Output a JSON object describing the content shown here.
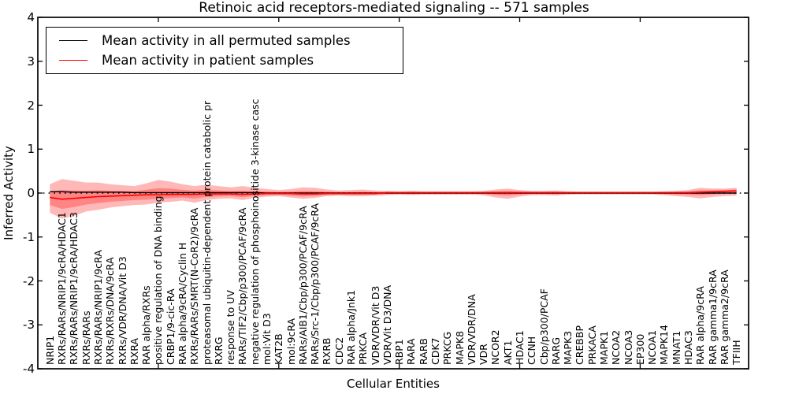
{
  "title": "Retinoic acid receptors-mediated signaling -- 571 samples",
  "legend": {
    "items": [
      {
        "name": "permuted",
        "label": "Mean activity in all permuted samples",
        "color": "#000000"
      },
      {
        "name": "patient",
        "label": "Mean activity in patient samples",
        "color": "#ff0000"
      }
    ],
    "position": "upper left"
  },
  "chart_data": {
    "type": "line",
    "title": "Retinoic acid receptors-mediated signaling -- 571 samples",
    "xlabel": "Cellular Entities",
    "ylabel": "Inferred Activity",
    "ylim": [
      -4,
      4
    ],
    "yticks": [
      4,
      3,
      2,
      1,
      0,
      -1,
      -2,
      -3,
      -4
    ],
    "grid": false,
    "zero_line": {
      "style": "dotted",
      "color": "#000000",
      "y": 0
    },
    "band_color": "#ff0000",
    "band_opacity": 0.28,
    "categories": [
      "NRIP1",
      "RXRs/RARs/NRIP1/9cRA/HDAC1",
      "RXRs/RARs/NRIP1/9cRA/HDAC3",
      "RXRs/RARs",
      "RXRs/RARs/NRIP1/9cRA",
      "RXRs/RXRs/DNA/9cRA",
      "RXRs/VDR/DNA/Vit D3",
      "RXRA",
      "RAR alpha/RXRs",
      "positive regulation of DNA binding",
      "CRBP1/9-cic-RA",
      "RAR alpha/9cRA/Cyclin H",
      "RXRs/RARs/SMRT(N-CoR2)/9cRA",
      "proteasomal ubiquitin-dependent protein catabolic pr",
      "RXRG",
      "response to UV",
      "RARs/TIF2/Cbp/p300/PCAF/9cRA",
      "negative regulation of phosphoinositide 3-kinase casc",
      "mol:Vit D3",
      "KAT2B",
      "mol:9cRA",
      "RARs/AIB1/Cbp/p300/PCAF/9cRA",
      "RARs/Src-1/Cbp/p300/PCAF/9cRA",
      "RXRB",
      "CDC2",
      "RAR alpha/Jnk1",
      "PRKCA",
      "VDR/VDR/Vit D3",
      "VDR/Vit D3/DNA",
      "RBP1",
      "RARA",
      "RARB",
      "CDK7",
      "PRKCG",
      "MAPK8",
      "VDR/VDR/DNA",
      "VDR",
      "NCOR2",
      "AKT1",
      "HDAC1",
      "CCNH",
      "Cbp/p300/PCAF",
      "RARG",
      "MAPK3",
      "CREBBP",
      "PRKACA",
      "MAPK1",
      "NCOA2",
      "NCOA3",
      "EP300",
      "NCOA1",
      "MAPK14",
      "MNAT1",
      "HDAC3",
      "RAR alpha/9cRA",
      "RAR gamma1/9cRA",
      "RAR gamma2/9cRA",
      "TFIIH"
    ],
    "series": [
      {
        "name": "Mean activity in all permuted samples",
        "color": "#000000",
        "values": [
          0.03,
          0.03,
          0.02,
          0.02,
          0.02,
          0.02,
          0.02,
          0.01,
          0.01,
          0.01,
          0.01,
          0.01,
          0.01,
          0.01,
          0.01,
          0.01,
          0.01,
          0.01,
          0,
          0,
          0,
          0,
          0,
          0,
          0,
          0,
          0,
          0,
          0,
          0,
          0,
          0,
          0,
          0,
          0,
          0,
          0,
          0,
          0,
          0,
          0,
          0,
          0,
          0,
          0,
          0,
          0,
          0,
          0,
          0,
          0,
          0,
          0,
          0,
          0,
          0,
          0,
          0
        ]
      },
      {
        "name": "Mean activity in patient samples",
        "color": "#ff0000",
        "values": [
          -0.1,
          -0.14,
          -0.12,
          -0.1,
          -0.08,
          -0.07,
          -0.06,
          -0.05,
          -0.04,
          -0.04,
          -0.03,
          -0.03,
          -0.03,
          -0.02,
          -0.02,
          -0.02,
          -0.03,
          -0.02,
          -0.01,
          -0.01,
          -0.01,
          -0.02,
          -0.02,
          -0.01,
          -0.01,
          -0.01,
          -0.01,
          -0.01,
          0.01,
          0.01,
          0.01,
          0.01,
          0.01,
          0.01,
          0.01,
          0.01,
          0.01,
          0.01,
          0.01,
          0.01,
          0.01,
          0.01,
          0.01,
          0.01,
          0.01,
          0.01,
          0.01,
          0.01,
          0.01,
          0.01,
          0.01,
          0.01,
          0.01,
          0.01,
          0.02,
          0.03,
          0.04,
          0.05
        ]
      }
    ],
    "band": {
      "name": "patient samples std band",
      "upper": [
        0.2,
        0.32,
        0.28,
        0.24,
        0.24,
        0.2,
        0.18,
        0.16,
        0.22,
        0.3,
        0.26,
        0.2,
        0.16,
        0.19,
        0.16,
        0.13,
        0.16,
        0.12,
        0.09,
        0.07,
        0.09,
        0.13,
        0.12,
        0.08,
        0.06,
        0.07,
        0.08,
        0.06,
        0.05,
        0.04,
        0.05,
        0.04,
        0.04,
        0.04,
        0.04,
        0.04,
        0.05,
        0.08,
        0.1,
        0.07,
        0.05,
        0.05,
        0.06,
        0.04,
        0.03,
        0.03,
        0.03,
        0.03,
        0.03,
        0.03,
        0.03,
        0.04,
        0.05,
        0.07,
        0.12,
        0.1,
        0.1,
        0.12
      ],
      "lower": [
        -0.45,
        -0.58,
        -0.52,
        -0.42,
        -0.38,
        -0.33,
        -0.3,
        -0.27,
        -0.26,
        -0.22,
        -0.2,
        -0.17,
        -0.22,
        -0.16,
        -0.13,
        -0.12,
        -0.16,
        -0.11,
        -0.08,
        -0.07,
        -0.1,
        -0.13,
        -0.11,
        -0.07,
        -0.06,
        -0.07,
        -0.07,
        -0.06,
        -0.05,
        -0.04,
        -0.05,
        -0.04,
        -0.04,
        -0.04,
        -0.04,
        -0.04,
        -0.05,
        -0.1,
        -0.13,
        -0.08,
        -0.05,
        -0.05,
        -0.06,
        -0.04,
        -0.03,
        -0.03,
        -0.03,
        -0.03,
        -0.03,
        -0.03,
        -0.03,
        -0.05,
        -0.07,
        -0.09,
        -0.12,
        -0.09,
        -0.07,
        -0.06
      ]
    },
    "x_major_tick_every": 10
  }
}
